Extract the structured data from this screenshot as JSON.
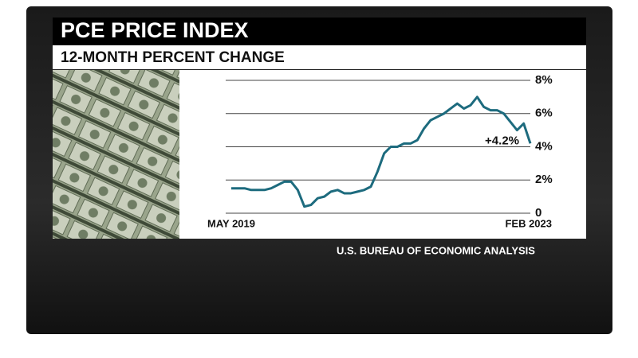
{
  "chart_data": {
    "type": "line",
    "title": "PCE PRICE INDEX",
    "subtitle": "12-MONTH PERCENT CHANGE",
    "source": "U.S. BUREAU OF ECONOMIC ANALYSIS",
    "annotation": "+4.2%",
    "categories": [
      "MAY 2019",
      null,
      null,
      null,
      null,
      null,
      null,
      null,
      null,
      null,
      null,
      null,
      null,
      null,
      null,
      null,
      null,
      null,
      null,
      null,
      null,
      null,
      null,
      null,
      null,
      null,
      null,
      null,
      null,
      null,
      null,
      null,
      null,
      null,
      null,
      null,
      null,
      null,
      null,
      null,
      null,
      null,
      null,
      null,
      null,
      "FEB 2023"
    ],
    "series": [
      {
        "color": "#1d6b7e",
        "values": [
          1.5,
          1.5,
          1.5,
          1.4,
          1.4,
          1.4,
          1.5,
          1.7,
          1.9,
          1.9,
          1.4,
          0.4,
          0.5,
          0.9,
          1.0,
          1.3,
          1.4,
          1.2,
          1.2,
          1.3,
          1.4,
          1.6,
          2.5,
          3.6,
          4.0,
          4.0,
          4.2,
          4.2,
          4.4,
          5.1,
          5.6,
          5.8,
          6.0,
          6.3,
          6.6,
          6.3,
          6.5,
          7.0,
          6.4,
          6.2,
          6.2,
          6.0,
          5.5,
          5.0,
          5.4,
          4.2
        ]
      }
    ],
    "ylim": [
      0,
      8
    ],
    "yticks": [
      0,
      {
        "value": 2,
        "label": "2%"
      },
      {
        "value": 4,
        "label": "4%"
      },
      {
        "value": 6,
        "label": "6%"
      },
      {
        "value": 8,
        "label": "8%"
      }
    ],
    "grid": true
  }
}
